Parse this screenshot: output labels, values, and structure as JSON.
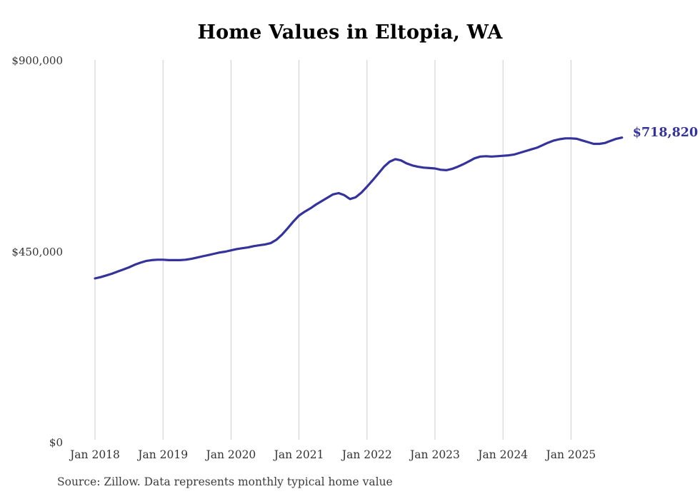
{
  "title": "Home Values in Eltopia, WA",
  "source_note": "Source: Zillow. Data represents monthly typical home value",
  "end_label": "$718,820",
  "colors": {
    "line": "#34339B",
    "end_label": "#34339B",
    "grid": "#cccccc",
    "axis_text": "#333333",
    "title_text": "#000000",
    "source_text": "#3d3d3d",
    "background": "#ffffff"
  },
  "chart_data": {
    "type": "line",
    "title": "Home Values in Eltopia, WA",
    "xlabel": "",
    "ylabel": "",
    "ylim": [
      0,
      900000
    ],
    "grid": "vertical-only",
    "legend": "none",
    "y_ticks": [
      {
        "value": 0,
        "label": "$0"
      },
      {
        "value": 450000,
        "label": "$450,000"
      },
      {
        "value": 900000,
        "label": "$900,000"
      }
    ],
    "x_tick_labels": [
      "Jan 2018",
      "Jan 2019",
      "Jan 2020",
      "Jan 2021",
      "Jan 2022",
      "Jan 2023",
      "Jan 2024",
      "Jan 2025"
    ],
    "x_ticks_every_n_months": 12,
    "end_value": 718820,
    "series": [
      {
        "name": "Monthly typical home value",
        "unit": "USD",
        "months": [
          "2018-01",
          "2018-02",
          "2018-03",
          "2018-04",
          "2018-05",
          "2018-06",
          "2018-07",
          "2018-08",
          "2018-09",
          "2018-10",
          "2018-11",
          "2018-12",
          "2019-01",
          "2019-02",
          "2019-03",
          "2019-04",
          "2019-05",
          "2019-06",
          "2019-07",
          "2019-08",
          "2019-09",
          "2019-10",
          "2019-11",
          "2019-12",
          "2020-01",
          "2020-02",
          "2020-03",
          "2020-04",
          "2020-05",
          "2020-06",
          "2020-07",
          "2020-08",
          "2020-09",
          "2020-10",
          "2020-11",
          "2020-12",
          "2021-01",
          "2021-02",
          "2021-03",
          "2021-04",
          "2021-05",
          "2021-06",
          "2021-07",
          "2021-08",
          "2021-09",
          "2021-10",
          "2021-11",
          "2021-12",
          "2022-01",
          "2022-02",
          "2022-03",
          "2022-04",
          "2022-05",
          "2022-06",
          "2022-07",
          "2022-08",
          "2022-09",
          "2022-10",
          "2022-11",
          "2022-12",
          "2023-01",
          "2023-02",
          "2023-03",
          "2023-04",
          "2023-05",
          "2023-06",
          "2023-07",
          "2023-08",
          "2023-09",
          "2023-10",
          "2023-11",
          "2023-12",
          "2024-01",
          "2024-02",
          "2024-03",
          "2024-04",
          "2024-05",
          "2024-06",
          "2024-07",
          "2024-08",
          "2024-09",
          "2024-10",
          "2024-11",
          "2024-12",
          "2025-01",
          "2025-02",
          "2025-03",
          "2025-04",
          "2025-05",
          "2025-06",
          "2025-07",
          "2025-08",
          "2025-09",
          "2025-10"
        ],
        "values": [
          387000,
          390000,
          394000,
          398000,
          403000,
          408000,
          413000,
          419000,
          424000,
          428000,
          430000,
          431000,
          431000,
          430000,
          430000,
          430000,
          431000,
          433000,
          436000,
          439000,
          442000,
          445000,
          448000,
          450000,
          453000,
          456000,
          458000,
          460000,
          463000,
          465000,
          467000,
          470000,
          478000,
          490000,
          505000,
          521000,
          535000,
          544000,
          552000,
          561000,
          569000,
          577000,
          585000,
          588000,
          583000,
          574000,
          578000,
          589000,
          603000,
          618000,
          634000,
          650000,
          662000,
          668000,
          665000,
          658000,
          653000,
          650000,
          648000,
          647000,
          646000,
          643000,
          642000,
          645000,
          650000,
          656000,
          663000,
          670000,
          674000,
          675000,
          674000,
          675000,
          676000,
          677000,
          679000,
          683000,
          687000,
          691000,
          695000,
          701000,
          707000,
          712000,
          715000,
          717000,
          717000,
          716000,
          712000,
          708000,
          704000,
          704000,
          706000,
          711000,
          716000,
          718820
        ]
      }
    ]
  }
}
